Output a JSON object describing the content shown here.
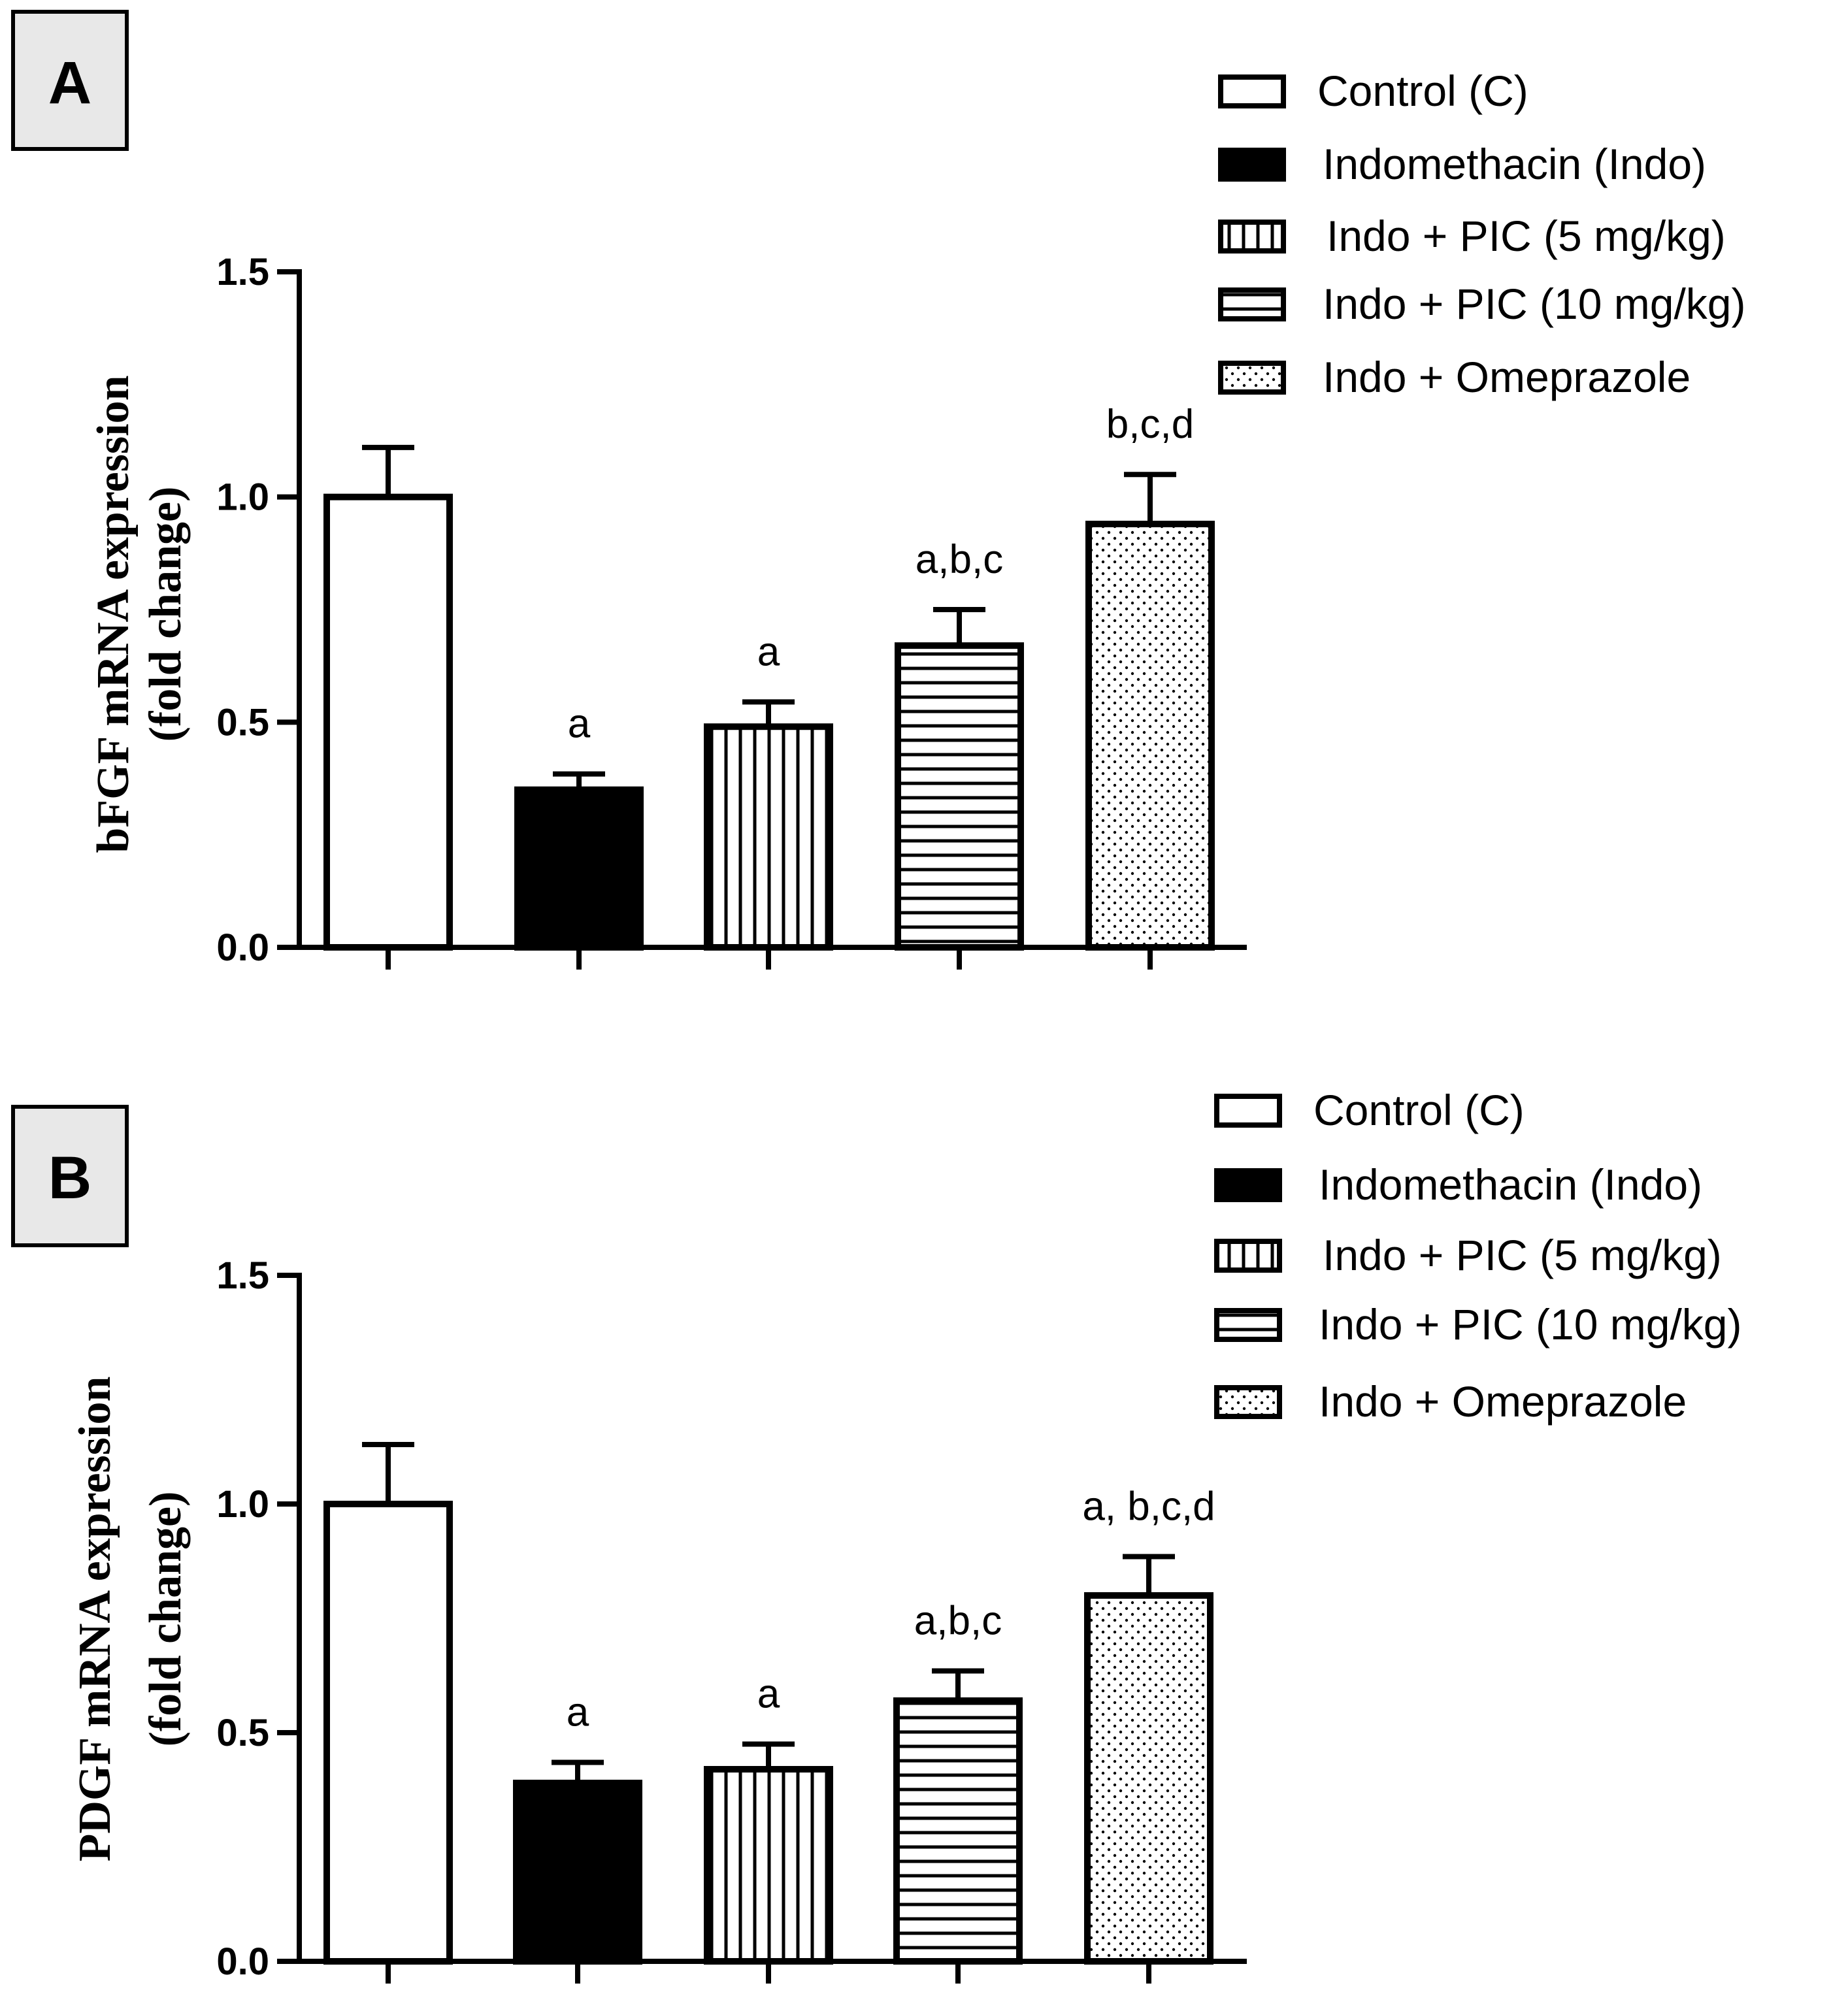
{
  "colors": {
    "axis": "#000000",
    "panel_box_fill": "#e8e8e8",
    "bar_fill_light": "#ffffff",
    "bar_fill_dark": "#000000"
  },
  "legend_labels": [
    "Control (C)",
    "Indomethacin (Indo)",
    "Indo + PIC (5 mg/kg)",
    "Indo + PIC (10 mg/kg)",
    "Indo + Omeprazole"
  ],
  "chart_data": [
    {
      "type": "bar",
      "panel": "A",
      "ylabel_line1": "bFGF mRNA expression",
      "ylabel_line2": "(fold change)",
      "xlabel": "",
      "ylim": [
        0,
        1.5
      ],
      "yticks": [
        "0.0",
        "0.5",
        "1.0",
        "1.5"
      ],
      "ytick_values": [
        0,
        0.5,
        1.0,
        1.5
      ],
      "categories": [
        "Control (C)",
        "Indomethacin (Indo)",
        "Indo + PIC (5 mg/kg)",
        "Indo + PIC (10 mg/kg)",
        "Indo + Omeprazole"
      ],
      "patterns": [
        "white",
        "black",
        "vertical",
        "horizontal",
        "dots"
      ],
      "values": [
        1.0,
        0.35,
        0.49,
        0.67,
        0.94
      ],
      "errors": [
        0.11,
        0.035,
        0.055,
        0.08,
        0.11
      ],
      "annotations": [
        "",
        "a",
        "a",
        "a,b,c",
        "b,c,d"
      ]
    },
    {
      "type": "bar",
      "panel": "B",
      "ylabel_line1": "PDGF mRNA expression",
      "ylabel_line2": "(fold change)",
      "xlabel": "",
      "ylim": [
        0,
        1.5
      ],
      "yticks": [
        "0.0",
        "0.5",
        "1.0",
        "1.5"
      ],
      "ytick_values": [
        0,
        0.5,
        1.0,
        1.5
      ],
      "categories": [
        "Control (C)",
        "Indomethacin (Indo)",
        "Indo + PIC (5 mg/kg)",
        "Indo + PIC (10 mg/kg)",
        "Indo + Omeprazole"
      ],
      "patterns": [
        "white",
        "black",
        "vertical",
        "horizontal",
        "dots"
      ],
      "values": [
        1.0,
        0.39,
        0.42,
        0.57,
        0.8
      ],
      "errors": [
        0.13,
        0.045,
        0.055,
        0.065,
        0.085
      ],
      "annotations": [
        "",
        "a",
        "a",
        "a,b,c",
        "a, b,c,d"
      ]
    }
  ]
}
